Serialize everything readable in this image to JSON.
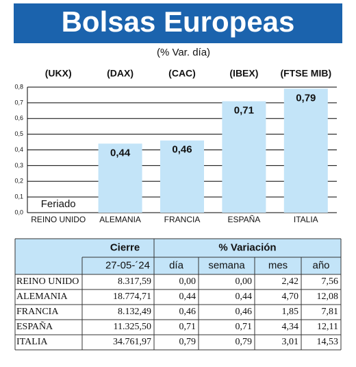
{
  "chart_data": {
    "type": "bar",
    "title": "Bolsas Europeas",
    "subtitle": "(% Var. día)",
    "tickers": [
      "(UKX)",
      "(DAX)",
      "(CAC)",
      "(IBEX)",
      "(FTSE MIB)"
    ],
    "categories": [
      "REINO UNIDO",
      "ALEMANIA",
      "FRANCIA",
      "ESPAÑA",
      "ITALIA"
    ],
    "values": [
      null,
      0.44,
      0.46,
      0.71,
      0.79
    ],
    "value_labels": [
      null,
      "0,44",
      "0,46",
      "0,71",
      "0,79"
    ],
    "annotation": "Feriado",
    "color": "#c3e4f8",
    "ylim": [
      0,
      0.8
    ],
    "yticks": [
      {
        "value": 0,
        "label": "0,0"
      },
      {
        "value": 0.1,
        "label": "0,1"
      },
      {
        "value": 0.2,
        "label": "0,2"
      },
      {
        "value": 0.3,
        "label": "0,3"
      },
      {
        "value": 0.4,
        "label": "0,4"
      },
      {
        "value": 0.5,
        "label": "0,5"
      },
      {
        "value": 0.6,
        "label": "0,6"
      },
      {
        "value": 0.7,
        "label": "0,7"
      },
      {
        "value": 0.8,
        "label": "0,8"
      }
    ],
    "grid": true
  },
  "table": {
    "group_headers": [
      "Cierre",
      "% Variación"
    ],
    "headers": [
      "27-05-´24",
      "día",
      "semana",
      "mes",
      "año"
    ],
    "rows": [
      [
        "REINO UNIDO",
        "8.317,59",
        "0,00",
        "0,00",
        "2,42",
        "7,56"
      ],
      [
        "ALEMANIA",
        "18.774,71",
        "0,44",
        "0,44",
        "4,70",
        "12,08"
      ],
      [
        "FRANCIA",
        "8.132,49",
        "0,46",
        "0,46",
        "1,85",
        "7,81"
      ],
      [
        "ESPAÑA",
        "11.325,50",
        "0,71",
        "0,71",
        "4,34",
        "12,11"
      ],
      [
        "ITALIA",
        "34.761,97",
        "0,79",
        "0,79",
        "3,01",
        "14,53"
      ]
    ]
  }
}
